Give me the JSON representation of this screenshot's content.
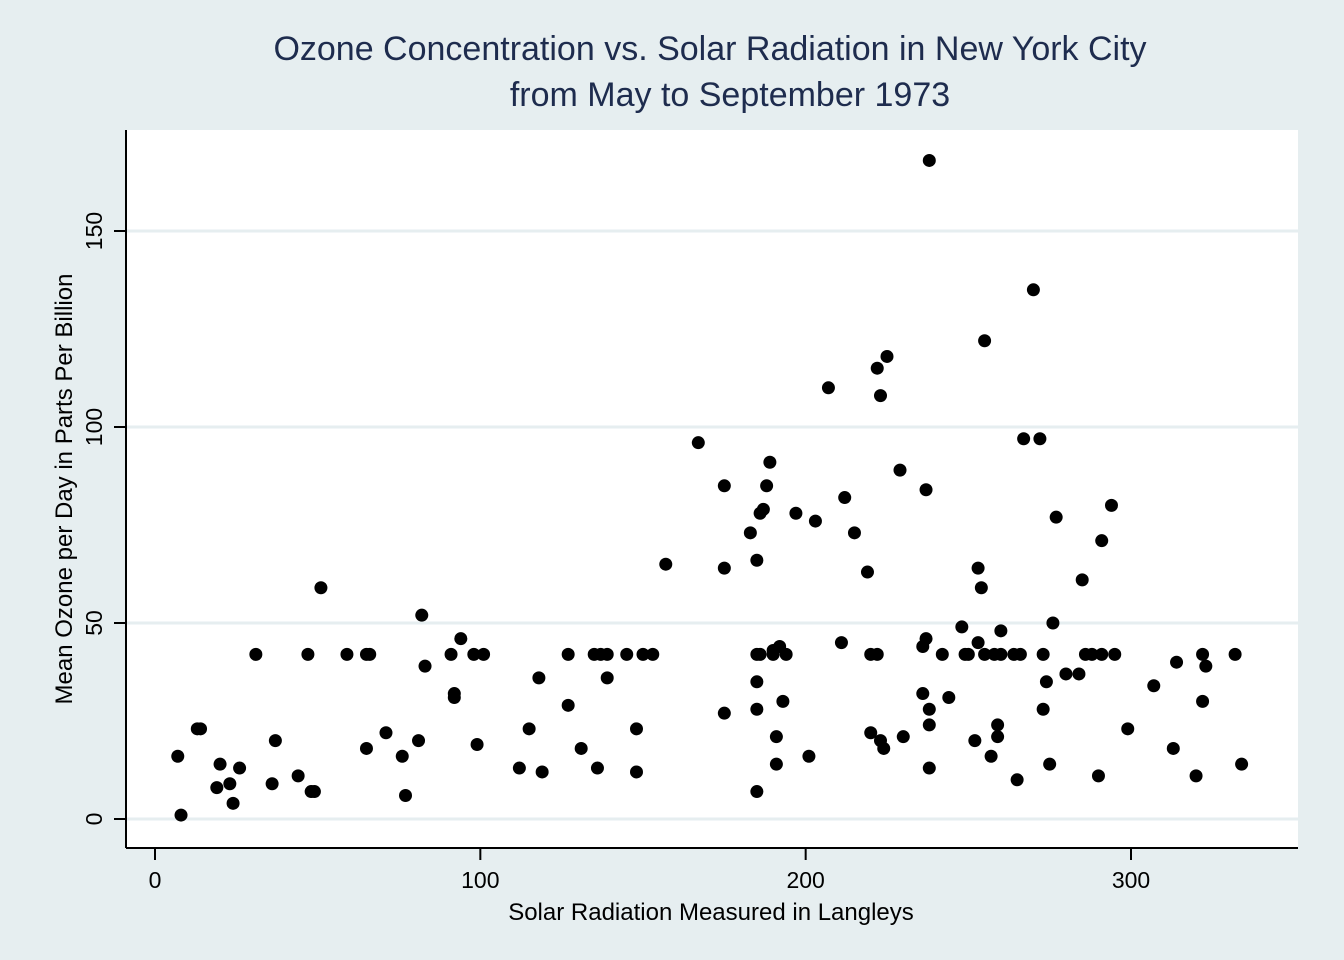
{
  "chart_data": {
    "type": "scatter",
    "title": [
      "Ozone Concentration vs. Solar Radiation in New York City",
      "from May to September 1973"
    ],
    "xlabel": "Solar Radiation Measured in Langleys",
    "ylabel": "Mean Ozone per Day in Parts Per Billion",
    "xlim": [
      -10,
      350
    ],
    "ylim": [
      -7,
      176
    ],
    "xticks": [
      0,
      100,
      200,
      300
    ],
    "yticks": [
      0,
      50,
      100,
      150
    ],
    "grid": true,
    "background_color": "#e6eef0",
    "plot_background_color": "#ffffff",
    "title_color": "#1e2c4e",
    "point_color": "#000000",
    "points": [
      [
        7,
        16
      ],
      [
        8,
        1
      ],
      [
        13,
        23
      ],
      [
        14,
        23
      ],
      [
        19,
        8
      ],
      [
        20,
        14
      ],
      [
        23,
        9
      ],
      [
        24,
        4
      ],
      [
        26,
        13
      ],
      [
        31,
        42
      ],
      [
        36,
        9
      ],
      [
        37,
        20
      ],
      [
        44,
        11
      ],
      [
        47,
        42
      ],
      [
        48,
        7
      ],
      [
        49,
        7
      ],
      [
        51,
        59
      ],
      [
        59,
        42
      ],
      [
        65,
        18
      ],
      [
        65,
        42
      ],
      [
        66,
        42
      ],
      [
        71,
        22
      ],
      [
        76,
        16
      ],
      [
        77,
        6
      ],
      [
        81,
        20
      ],
      [
        82,
        52
      ],
      [
        83,
        39
      ],
      [
        91,
        42
      ],
      [
        92,
        32
      ],
      [
        92,
        31
      ],
      [
        94,
        46
      ],
      [
        98,
        42
      ],
      [
        99,
        19
      ],
      [
        101,
        42
      ],
      [
        112,
        13
      ],
      [
        115,
        23
      ],
      [
        118,
        36
      ],
      [
        119,
        12
      ],
      [
        127,
        29
      ],
      [
        127,
        42
      ],
      [
        131,
        18
      ],
      [
        135,
        42
      ],
      [
        136,
        13
      ],
      [
        137,
        42
      ],
      [
        139,
        36
      ],
      [
        139,
        42
      ],
      [
        145,
        42
      ],
      [
        148,
        23
      ],
      [
        148,
        12
      ],
      [
        150,
        42
      ],
      [
        153,
        42
      ],
      [
        157,
        65
      ],
      [
        167,
        96
      ],
      [
        175,
        85
      ],
      [
        175,
        64
      ],
      [
        175,
        27
      ],
      [
        183,
        73
      ],
      [
        185,
        42
      ],
      [
        185,
        28
      ],
      [
        185,
        66
      ],
      [
        185,
        35
      ],
      [
        185,
        7
      ],
      [
        186,
        78
      ],
      [
        186,
        42
      ],
      [
        187,
        79
      ],
      [
        188,
        85
      ],
      [
        189,
        91
      ],
      [
        190,
        42
      ],
      [
        190,
        43
      ],
      [
        191,
        21
      ],
      [
        191,
        14
      ],
      [
        192,
        44
      ],
      [
        193,
        30
      ],
      [
        194,
        42
      ],
      [
        197,
        78
      ],
      [
        201,
        16
      ],
      [
        203,
        76
      ],
      [
        207,
        110
      ],
      [
        211,
        45
      ],
      [
        212,
        82
      ],
      [
        215,
        73
      ],
      [
        219,
        63
      ],
      [
        220,
        22
      ],
      [
        220,
        42
      ],
      [
        222,
        115
      ],
      [
        222,
        42
      ],
      [
        223,
        108
      ],
      [
        223,
        20
      ],
      [
        224,
        18
      ],
      [
        225,
        118
      ],
      [
        229,
        89
      ],
      [
        230,
        21
      ],
      [
        236,
        32
      ],
      [
        236,
        44
      ],
      [
        237,
        84
      ],
      [
        237,
        46
      ],
      [
        238,
        168
      ],
      [
        238,
        28
      ],
      [
        238,
        24
      ],
      [
        238,
        13
      ],
      [
        242,
        42
      ],
      [
        244,
        31
      ],
      [
        248,
        49
      ],
      [
        249,
        42
      ],
      [
        250,
        42
      ],
      [
        252,
        20
      ],
      [
        253,
        45
      ],
      [
        253,
        64
      ],
      [
        254,
        59
      ],
      [
        255,
        122
      ],
      [
        255,
        42
      ],
      [
        257,
        16
      ],
      [
        258,
        42
      ],
      [
        259,
        21
      ],
      [
        259,
        24
      ],
      [
        260,
        42
      ],
      [
        260,
        48
      ],
      [
        264,
        42
      ],
      [
        265,
        10
      ],
      [
        266,
        42
      ],
      [
        267,
        97
      ],
      [
        270,
        135
      ],
      [
        272,
        97
      ],
      [
        273,
        42
      ],
      [
        273,
        28
      ],
      [
        274,
        35
      ],
      [
        275,
        14
      ],
      [
        276,
        50
      ],
      [
        277,
        77
      ],
      [
        280,
        37
      ],
      [
        284,
        37
      ],
      [
        285,
        61
      ],
      [
        286,
        42
      ],
      [
        288,
        42
      ],
      [
        290,
        11
      ],
      [
        291,
        42
      ],
      [
        291,
        71
      ],
      [
        294,
        80
      ],
      [
        295,
        42
      ],
      [
        299,
        23
      ],
      [
        307,
        34
      ],
      [
        313,
        18
      ],
      [
        314,
        40
      ],
      [
        320,
        11
      ],
      [
        322,
        30
      ],
      [
        322,
        42
      ],
      [
        323,
        39
      ],
      [
        332,
        42
      ],
      [
        334,
        14
      ]
    ]
  }
}
